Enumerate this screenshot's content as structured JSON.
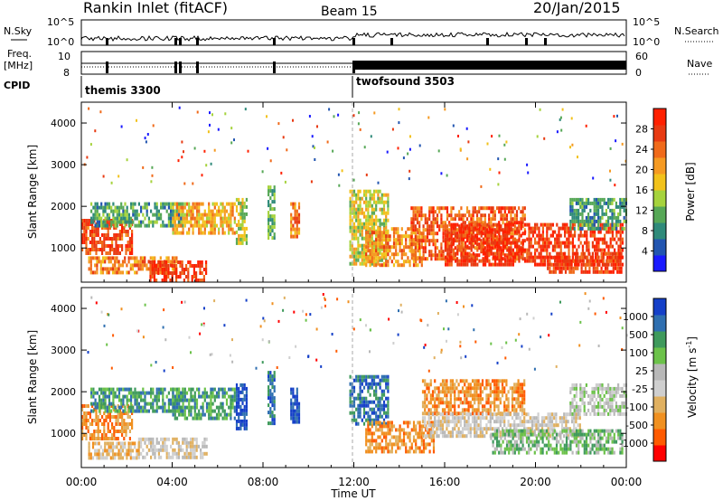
{
  "header": {
    "station": "Rankin Inlet (fitACF)",
    "beam": "Beam 15",
    "date": "20/Jan/2015"
  },
  "top_panels": {
    "nsky_label": "N.Sky",
    "nsky_ticks": [
      "10^5",
      "10^0"
    ],
    "nsearch_label": "N.Search",
    "nsearch_ticks": [
      "10^5",
      "10^0"
    ],
    "freq_label_1": "Freq.",
    "freq_label_2": "[MHz]",
    "freq_ticks": [
      "10",
      "8"
    ],
    "nave_label": "Nave",
    "nave_ticks": [
      "60",
      "0"
    ],
    "cpid_label": "CPID",
    "programs": [
      {
        "name": "themis 3300",
        "start_hour": 0
      },
      {
        "name": "twofsound 3503",
        "start_hour": 12
      }
    ]
  },
  "colors": {
    "power_scale": [
      "#1a1aff",
      "#2255b0",
      "#2f8a7a",
      "#57a857",
      "#a6d33d",
      "#f2c21b",
      "#f59a22",
      "#f06a1a",
      "#e83a12",
      "#ff2000"
    ],
    "velocity_scale": [
      "#ff0000",
      "#ff5a00",
      "#f09020",
      "#e0b060",
      "#cfcfcf",
      "#b8b8b8",
      "#6cc24a",
      "#3f9a5c",
      "#2f6fb0",
      "#1540c8"
    ],
    "ground_scatter": "#c8c8c8"
  },
  "chart_data": [
    {
      "type": "heatmap",
      "name": "Power",
      "ylabel": "Slant Range [km]",
      "xlabel": "Time UT",
      "x_ticks": [
        "00:00",
        "04:00",
        "08:00",
        "12:00",
        "16:00",
        "20:00",
        "00:00"
      ],
      "xlim_hours": [
        0,
        24
      ],
      "y_ticks": [
        "1000",
        "2000",
        "3000",
        "4000"
      ],
      "ylim_km": [
        180,
        4500
      ],
      "colorbar_label": "Power [dB]",
      "colorbar_ticks": [
        "4",
        "8",
        "12",
        "16",
        "20",
        "24",
        "28"
      ],
      "colorbar_range": [
        0,
        30
      ],
      "scatter_regions": [
        {
          "t0": 0.0,
          "t1": 2.2,
          "r0": 900,
          "r1": 1700,
          "level": 26
        },
        {
          "t0": 0.4,
          "t1": 4.5,
          "r0": 1500,
          "r1": 2100,
          "level": 9
        },
        {
          "t0": 0.3,
          "t1": 4.2,
          "r0": 420,
          "r1": 800,
          "level": 22
        },
        {
          "t0": 3.0,
          "t1": 5.5,
          "r0": 200,
          "r1": 700,
          "level": 27
        },
        {
          "t0": 4.0,
          "t1": 6.8,
          "r0": 1400,
          "r1": 2100,
          "level": 19
        },
        {
          "t0": 6.8,
          "t1": 7.3,
          "r0": 1100,
          "r1": 2200,
          "level": 14
        },
        {
          "t0": 8.2,
          "t1": 8.5,
          "r0": 1200,
          "r1": 2500,
          "level": 10
        },
        {
          "t0": 9.2,
          "t1": 9.6,
          "r0": 1300,
          "r1": 2100,
          "level": 22
        },
        {
          "t0": 11.8,
          "t1": 13.5,
          "r0": 600,
          "r1": 2400,
          "level": 15
        },
        {
          "t0": 12.5,
          "t1": 15.0,
          "r0": 600,
          "r1": 1500,
          "level": 21
        },
        {
          "t0": 14.5,
          "t1": 19.5,
          "r0": 700,
          "r1": 2000,
          "level": 25
        },
        {
          "t0": 16.0,
          "t1": 23.8,
          "r0": 600,
          "r1": 1600,
          "level": 28
        },
        {
          "t0": 20.5,
          "t1": 23.8,
          "r0": 400,
          "r1": 900,
          "level": 27
        },
        {
          "t0": 21.5,
          "t1": 24.0,
          "r0": 1500,
          "r1": 2200,
          "level": 8
        }
      ]
    },
    {
      "type": "heatmap",
      "name": "Velocity",
      "ylabel": "Slant Range [km]",
      "xlabel": "Time UT",
      "x_ticks": [
        "00:00",
        "04:00",
        "08:00",
        "12:00",
        "16:00",
        "20:00",
        "00:00"
      ],
      "xlim_hours": [
        0,
        24
      ],
      "y_ticks": [
        "1000",
        "2000",
        "3000",
        "4000"
      ],
      "ylim_km": [
        180,
        4500
      ],
      "colorbar_label": "Velocity [m s",
      "colorbar_label_sup": "-1",
      "colorbar_label_end": "]",
      "colorbar_ticks": [
        "-1000",
        "-500",
        "-100",
        "-25",
        "25",
        "100",
        "500",
        "1000"
      ],
      "scatter_regions": [
        {
          "t0": 0.0,
          "t1": 2.2,
          "r0": 900,
          "r1": 1700,
          "level": 2
        },
        {
          "t0": 0.4,
          "t1": 4.5,
          "r0": 1500,
          "r1": 2100,
          "level": 7
        },
        {
          "t0": 0.3,
          "t1": 2.5,
          "r0": 420,
          "r1": 800,
          "level": 3
        },
        {
          "t0": 2.5,
          "t1": 5.5,
          "r0": 400,
          "r1": 900,
          "level": 4
        },
        {
          "t0": 4.0,
          "t1": 6.8,
          "r0": 1400,
          "r1": 2100,
          "level": 7
        },
        {
          "t0": 6.8,
          "t1": 7.3,
          "r0": 1100,
          "r1": 2200,
          "level": 9
        },
        {
          "t0": 8.2,
          "t1": 8.5,
          "r0": 1200,
          "r1": 2500,
          "level": 8
        },
        {
          "t0": 9.2,
          "t1": 9.6,
          "r0": 1300,
          "r1": 2100,
          "level": 9
        },
        {
          "t0": 11.8,
          "t1": 13.5,
          "r0": 1200,
          "r1": 2400,
          "level": 8
        },
        {
          "t0": 12.5,
          "t1": 15.5,
          "r0": 600,
          "r1": 1300,
          "level": 2
        },
        {
          "t0": 15.0,
          "t1": 19.5,
          "r0": 1500,
          "r1": 2300,
          "level": 2
        },
        {
          "t0": 15.0,
          "t1": 22.0,
          "r0": 900,
          "r1": 1500,
          "level": 4
        },
        {
          "t0": 18.0,
          "t1": 23.8,
          "r0": 500,
          "r1": 1100,
          "level": 6
        },
        {
          "t0": 21.5,
          "t1": 24.0,
          "r0": 1500,
          "r1": 2200,
          "level": 5
        }
      ]
    }
  ]
}
